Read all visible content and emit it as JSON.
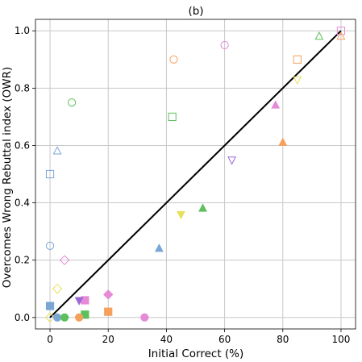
{
  "chart_data": {
    "type": "scatter",
    "title": "(b)",
    "xlabel": "Initial Correct (%)",
    "ylabel": "Overcomes Wrong Rebuttal index (OWR)",
    "xlim": [
      -5,
      105
    ],
    "ylim": [
      -0.04,
      1.04
    ],
    "grid": true,
    "xticks": [
      0,
      20,
      40,
      60,
      80,
      100
    ],
    "yticks": [
      0.0,
      0.2,
      0.4,
      0.6,
      0.8,
      1.0
    ],
    "xtick_labels": [
      "0",
      "20",
      "40",
      "60",
      "80",
      "100"
    ],
    "ytick_labels": [
      "0.0",
      "0.2",
      "0.4",
      "0.6",
      "0.8",
      "1.0"
    ],
    "line": {
      "x": [
        0,
        100
      ],
      "y": [
        0,
        1
      ],
      "color": "#000000"
    },
    "colors": {
      "blue": "#7aa6d6",
      "orange": "#f5a05c",
      "green": "#5cc15c",
      "pink": "#e58ad6",
      "yellow": "#e7e05a",
      "violet": "#9a6ad6"
    },
    "points": [
      {
        "x": 0,
        "y": 0.25,
        "marker": "circle",
        "filled": false,
        "color": "blue"
      },
      {
        "x": 42.5,
        "y": 0.9,
        "marker": "circle",
        "filled": false,
        "color": "orange"
      },
      {
        "x": 60,
        "y": 0.95,
        "marker": "circle",
        "filled": false,
        "color": "pink"
      },
      {
        "x": 7.5,
        "y": 0.75,
        "marker": "circle",
        "filled": false,
        "color": "green"
      },
      {
        "x": 0,
        "y": 0.5,
        "marker": "square",
        "filled": false,
        "color": "blue"
      },
      {
        "x": 42,
        "y": 0.7,
        "marker": "square",
        "filled": false,
        "color": "green"
      },
      {
        "x": 85,
        "y": 0.9,
        "marker": "square",
        "filled": false,
        "color": "orange"
      },
      {
        "x": 100,
        "y": 1.0,
        "marker": "square",
        "filled": false,
        "color": "pink"
      },
      {
        "x": 2.5,
        "y": 0.58,
        "marker": "triangle-up",
        "filled": false,
        "color": "blue"
      },
      {
        "x": 92.5,
        "y": 0.98,
        "marker": "triangle-up",
        "filled": false,
        "color": "green"
      },
      {
        "x": 100,
        "y": 0.98,
        "marker": "triangle-up",
        "filled": false,
        "color": "orange"
      },
      {
        "x": 62.5,
        "y": 0.55,
        "marker": "triangle-down",
        "filled": false,
        "color": "violet"
      },
      {
        "x": 85,
        "y": 0.83,
        "marker": "triangle-down",
        "filled": false,
        "color": "yellow"
      },
      {
        "x": 5,
        "y": 0.2,
        "marker": "diamond",
        "filled": false,
        "color": "pink"
      },
      {
        "x": 2.5,
        "y": 0.1,
        "marker": "diamond",
        "filled": false,
        "color": "yellow"
      },
      {
        "x": 0,
        "y": 0.0,
        "marker": "diamond",
        "filled": false,
        "color": "yellow"
      },
      {
        "x": 0,
        "y": 0.04,
        "marker": "square",
        "filled": true,
        "color": "blue"
      },
      {
        "x": 12,
        "y": 0.06,
        "marker": "square",
        "filled": true,
        "color": "pink"
      },
      {
        "x": 12,
        "y": 0.01,
        "marker": "square",
        "filled": true,
        "color": "green"
      },
      {
        "x": 20,
        "y": 0.02,
        "marker": "square",
        "filled": true,
        "color": "orange"
      },
      {
        "x": 10,
        "y": 0.06,
        "marker": "triangle-down",
        "filled": true,
        "color": "violet"
      },
      {
        "x": 20,
        "y": 0.08,
        "marker": "diamond",
        "filled": true,
        "color": "pink"
      },
      {
        "x": 2.5,
        "y": 0.0,
        "marker": "circle",
        "filled": true,
        "color": "blue"
      },
      {
        "x": 5,
        "y": 0.0,
        "marker": "circle",
        "filled": true,
        "color": "green"
      },
      {
        "x": 10,
        "y": 0.0,
        "marker": "circle",
        "filled": true,
        "color": "orange"
      },
      {
        "x": 32.5,
        "y": 0.0,
        "marker": "circle",
        "filled": true,
        "color": "pink"
      },
      {
        "x": 37.5,
        "y": 0.24,
        "marker": "triangle-up",
        "filled": true,
        "color": "blue"
      },
      {
        "x": 45,
        "y": 0.36,
        "marker": "triangle-down",
        "filled": true,
        "color": "yellow"
      },
      {
        "x": 52.5,
        "y": 0.38,
        "marker": "triangle-up",
        "filled": true,
        "color": "green"
      },
      {
        "x": 77.5,
        "y": 0.74,
        "marker": "triangle-up",
        "filled": true,
        "color": "pink"
      },
      {
        "x": 80,
        "y": 0.61,
        "marker": "triangle-up",
        "filled": true,
        "color": "orange"
      }
    ]
  }
}
